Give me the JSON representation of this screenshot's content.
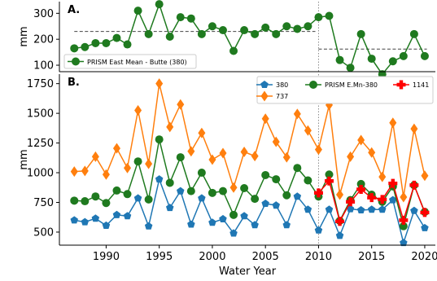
{
  "chart_data": [
    {
      "type": "line",
      "panel_label": "A.",
      "ylabel": "mm",
      "ylim": [
        75,
        345
      ],
      "yticks": [
        100,
        200,
        300
      ],
      "xlim": [
        1985.6,
        2021.0
      ],
      "legend": {
        "placement": "bottom-left",
        "entries": [
          "PRISM East Mean - Butte (380)"
        ]
      },
      "vline_x": 2010,
      "mean_lines": [
        {
          "x_start": 1987,
          "x_end": 2009.7,
          "y": 230
        },
        {
          "x_start": 2010,
          "x_end": 2020.2,
          "y": 162
        }
      ],
      "series": [
        {
          "name": "PRISM East Mean - Butte (380)",
          "color": "#1f7a1f",
          "x": [
            1987,
            1988,
            1989,
            1990,
            1991,
            1992,
            1993,
            1994,
            1995,
            1996,
            1997,
            1998,
            1999,
            2000,
            2001,
            2002,
            2003,
            2004,
            2005,
            2006,
            2007,
            2008,
            2009,
            2010,
            2011,
            2012,
            2013,
            2014,
            2015,
            2016,
            2017,
            2018,
            2019,
            2020
          ],
          "y": [
            165,
            170,
            185,
            185,
            205,
            180,
            310,
            220,
            335,
            210,
            285,
            280,
            220,
            250,
            235,
            155,
            235,
            220,
            245,
            220,
            250,
            240,
            250,
            285,
            290,
            120,
            90,
            220,
            125,
            65,
            115,
            135,
            220,
            135
          ]
        }
      ]
    },
    {
      "type": "line",
      "panel_label": "B.",
      "xlabel": "Water Year",
      "ylabel": "mm",
      "ylim": [
        390,
        1830
      ],
      "yticks": [
        500,
        750,
        1000,
        1250,
        1500,
        1750
      ],
      "xlim": [
        1985.6,
        2021.0
      ],
      "xticks": [
        1990,
        1995,
        2000,
        2005,
        2010,
        2015,
        2020
      ],
      "legend": {
        "placement": "top-right",
        "entries": [
          "380",
          "737",
          "PRISM E.Mn-380",
          "1141"
        ]
      },
      "vline_x": 2010,
      "series": [
        {
          "name": "380",
          "color": "#1f77b4",
          "marker": "pentagon",
          "x": [
            1987,
            1988,
            1989,
            1990,
            1991,
            1992,
            1993,
            1994,
            1995,
            1996,
            1997,
            1998,
            1999,
            2000,
            2001,
            2002,
            2003,
            2004,
            2005,
            2006,
            2007,
            2008,
            2009,
            2010,
            2011,
            2012,
            2013,
            2014,
            2015,
            2016,
            2017,
            2018,
            2019,
            2020
          ],
          "y": [
            600,
            585,
            615,
            555,
            645,
            635,
            785,
            550,
            945,
            705,
            845,
            565,
            785,
            580,
            610,
            490,
            635,
            560,
            740,
            725,
            560,
            800,
            690,
            515,
            690,
            470,
            695,
            685,
            690,
            690,
            770,
            410,
            680,
            535
          ]
        },
        {
          "name": "737",
          "color": "#ff7f0e",
          "marker": "diamond",
          "x": [
            1987,
            1988,
            1989,
            1990,
            1991,
            1992,
            1993,
            1994,
            1995,
            1996,
            1997,
            1998,
            1999,
            2000,
            2001,
            2002,
            2003,
            2004,
            2005,
            2006,
            2007,
            2008,
            2009,
            2010,
            2011,
            2012,
            2013,
            2014,
            2015,
            2016,
            2017,
            2018,
            2019,
            2020
          ],
          "y": [
            1010,
            1015,
            1135,
            985,
            1205,
            1040,
            1525,
            1075,
            1750,
            1385,
            1575,
            1180,
            1335,
            1110,
            1165,
            875,
            1175,
            1140,
            1455,
            1260,
            1130,
            1495,
            1355,
            1195,
            1570,
            815,
            1135,
            1275,
            1170,
            965,
            1420,
            795,
            1370,
            975
          ]
        },
        {
          "name": "PRISM E.Mn-380",
          "color": "#1f7a1f",
          "marker": "circle",
          "x": [
            1987,
            1988,
            1989,
            1990,
            1991,
            1992,
            1993,
            1994,
            1995,
            1996,
            1997,
            1998,
            1999,
            2000,
            2001,
            2002,
            2003,
            2004,
            2005,
            2006,
            2007,
            2008,
            2009,
            2010,
            2011,
            2012,
            2013,
            2014,
            2015,
            2016,
            2017,
            2018,
            2019,
            2020
          ],
          "y": [
            765,
            760,
            800,
            745,
            850,
            820,
            1095,
            775,
            1280,
            915,
            1130,
            845,
            1000,
            830,
            845,
            645,
            870,
            780,
            980,
            945,
            810,
            1040,
            935,
            800,
            985,
            595,
            770,
            905,
            815,
            755,
            885,
            550,
            895,
            670
          ]
        },
        {
          "name": "1141",
          "color": "#ff0000",
          "marker": "plus",
          "x": [
            2010,
            2011,
            2012,
            2013,
            2014,
            2015,
            2016,
            2017,
            2018,
            2019,
            2020
          ],
          "y": [
            830,
            930,
            590,
            755,
            860,
            790,
            775,
            910,
            600,
            895,
            665
          ]
        }
      ]
    }
  ]
}
